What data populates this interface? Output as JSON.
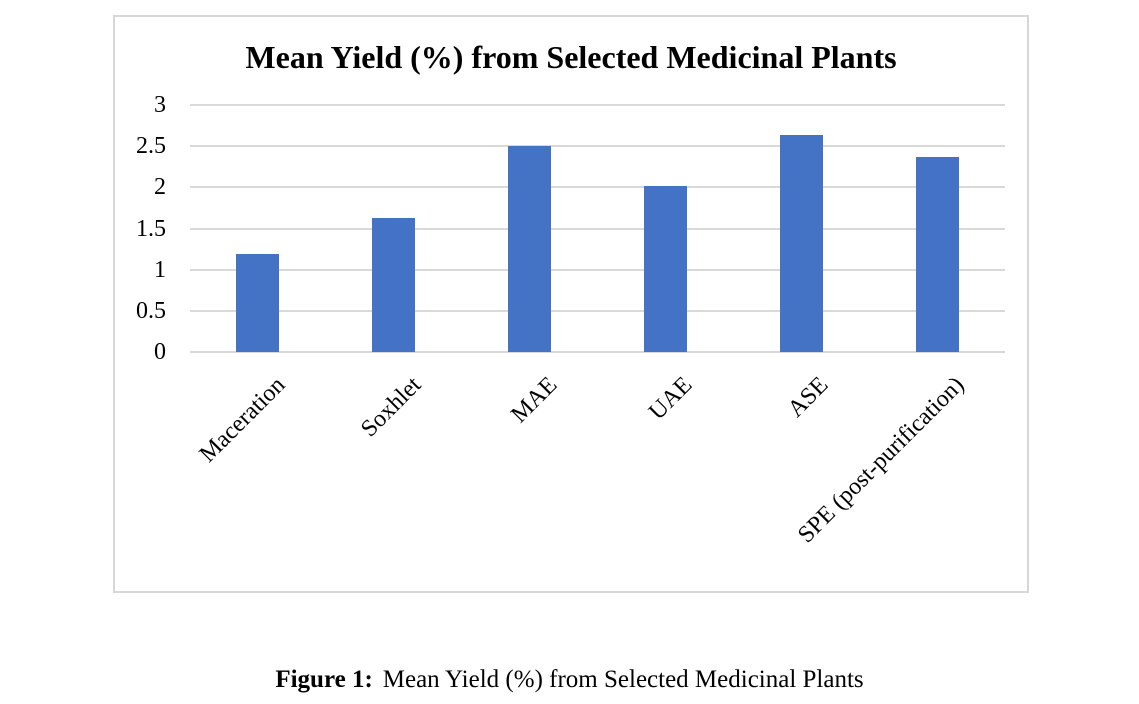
{
  "page": {
    "caption_label": "Figure 1:",
    "caption_text": "Mean Yield (%) from Selected Medicinal Plants"
  },
  "chart_data": {
    "type": "bar",
    "title": "Mean Yield (%) from Selected Medicinal Plants",
    "categories": [
      "Maceration",
      "Soxhlet",
      "MAE",
      "UAE",
      "ASE",
      "SPE (post-purification)"
    ],
    "values": [
      1.19,
      1.63,
      2.5,
      2.02,
      2.63,
      2.37
    ],
    "xlabel": "",
    "ylabel": "",
    "ylim": [
      0,
      3
    ],
    "ytick_step": 0.5,
    "ytick_labels": [
      "0",
      "0.5",
      "1",
      "1.5",
      "2",
      "2.5",
      "3"
    ],
    "grid": true,
    "legend": false,
    "colors": {
      "bar": "#4472C4",
      "gridline": "#d9d9d9",
      "chart_border": "#d7d7d7",
      "text": "#000000"
    }
  }
}
